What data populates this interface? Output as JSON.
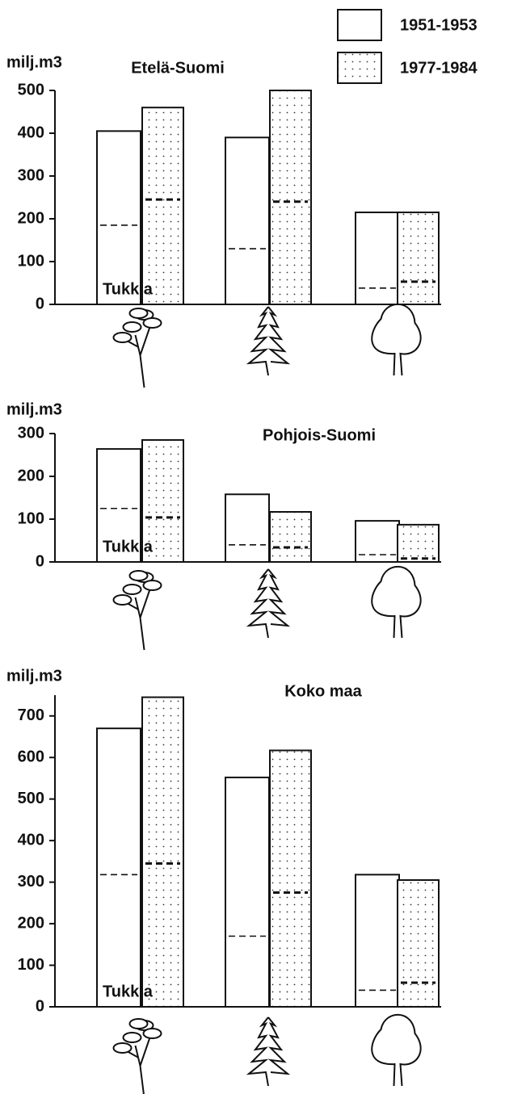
{
  "chart_data": [
    {
      "type": "bar",
      "title": "Etelä-Suomi",
      "ylabel": "milj.m3",
      "annotation": "Tukkia",
      "categories": [
        null,
        null,
        null
      ],
      "series": [
        {
          "name": "1951-1953",
          "color": "#ffffff",
          "values": [
            405,
            390,
            215
          ],
          "sawlog_values": [
            185,
            130,
            38
          ]
        },
        {
          "name": "1977-1984",
          "color": "dotted",
          "values": [
            460,
            500,
            215
          ],
          "sawlog_values": [
            245,
            240,
            53
          ]
        }
      ],
      "ylim": [
        0,
        500
      ],
      "yticks": [
        0,
        100,
        200,
        300,
        400,
        500
      ]
    },
    {
      "type": "bar",
      "title": "Pohjois-Suomi",
      "ylabel": "milj.m3",
      "annotation": "Tukkia",
      "categories": [
        null,
        null,
        null
      ],
      "series": [
        {
          "color": "#ffffff",
          "values": [
            264,
            158,
            96
          ],
          "sawlog_values": [
            125,
            40,
            17
          ]
        },
        {
          "color": "dotted",
          "values": [
            285,
            117,
            87
          ],
          "sawlog_values": [
            104,
            34,
            8
          ]
        }
      ],
      "ylim": [
        0,
        300
      ],
      "yticks": [
        0,
        100,
        200,
        300
      ]
    },
    {
      "type": "bar",
      "title": "Koko maa",
      "ylabel": "milj.m3",
      "annotation": "Tukkia",
      "categories": [
        null,
        null,
        null
      ],
      "series": [
        {
          "color": "#ffffff",
          "values": [
            670,
            552,
            318
          ],
          "sawlog_values": [
            318,
            170,
            40
          ]
        },
        {
          "color": "dotted",
          "values": [
            745,
            617,
            305
          ],
          "sawlog_values": [
            345,
            275,
            58
          ]
        }
      ],
      "ylim": [
        0,
        750
      ],
      "yticks": [
        0,
        100,
        200,
        300,
        400,
        500,
        600,
        700
      ]
    }
  ]
}
